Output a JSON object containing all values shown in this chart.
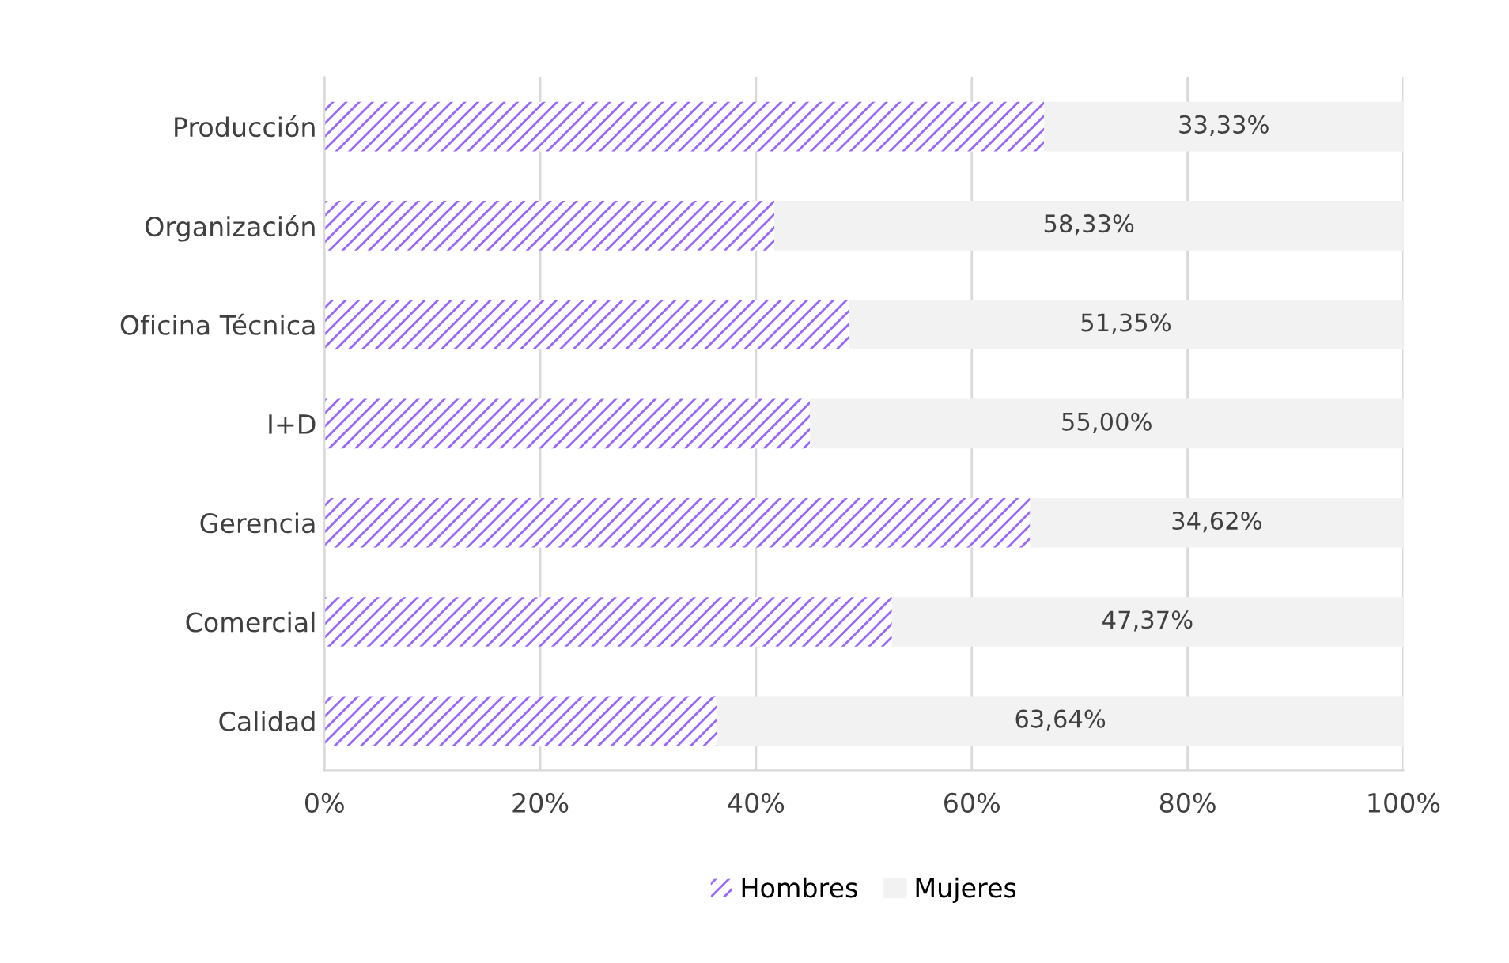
{
  "chart_data": {
    "type": "bar",
    "orientation": "horizontal",
    "stacked": true,
    "categories": [
      "Producción",
      "Organización",
      "Oficina Técnica",
      "I+D",
      "Gerencia",
      "Comercial",
      "Calidad"
    ],
    "series": [
      {
        "name": "Hombres",
        "color": "#9966ff",
        "values": [
          66.7,
          41.7,
          48.6,
          45.0,
          65.4,
          52.6,
          36.4
        ]
      },
      {
        "name": "Mujeres",
        "color": "#f2f2f2",
        "values": [
          33.33,
          58.33,
          51.35,
          55.0,
          34.62,
          47.37,
          63.64
        ],
        "value_labels": [
          "33,33%",
          "58,33%",
          "51,35%",
          "55,00%",
          "34,62%",
          "47,37%",
          "63,64%"
        ]
      }
    ],
    "xlim": [
      0,
      100
    ],
    "xticks": [
      {
        "value": 0,
        "label": "0%"
      },
      {
        "value": 20,
        "label": "20%"
      },
      {
        "value": 40,
        "label": "40%"
      },
      {
        "value": 60,
        "label": "60%"
      },
      {
        "value": 80,
        "label": "80%"
      },
      {
        "value": 100,
        "label": "100%"
      }
    ],
    "grid": "x",
    "legend": "bottom"
  }
}
